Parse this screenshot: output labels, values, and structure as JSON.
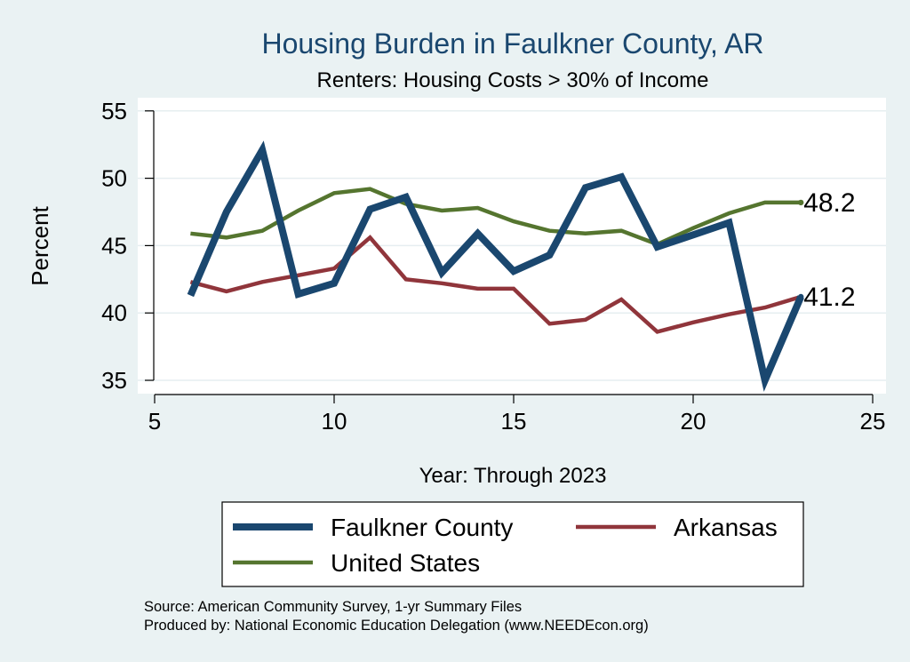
{
  "chart_data": {
    "type": "line",
    "title": "Housing Burden in Faulkner County, AR",
    "subtitle": "Renters: Housing Costs > 30% of Income",
    "xlabel": "Year: Through 2023",
    "ylabel": "Percent",
    "xlim": [
      5,
      25
    ],
    "ylim": [
      35,
      55
    ],
    "xticks": [
      5,
      10,
      15,
      20,
      25
    ],
    "yticks": [
      35,
      40,
      45,
      50,
      55
    ],
    "grid": "horizontal",
    "legend_position": "bottom",
    "series": [
      {
        "name": "Faulkner County",
        "color": "#1a476f",
        "x": [
          6,
          7,
          8,
          9,
          10,
          11,
          12,
          13,
          14,
          15,
          16,
          17,
          18,
          19,
          20,
          21,
          22,
          23
        ],
        "values": [
          41.3,
          47.5,
          52.1,
          41.4,
          42.2,
          47.7,
          48.6,
          43.0,
          45.9,
          43.1,
          44.3,
          49.3,
          50.1,
          44.9,
          45.8,
          46.7,
          35.0,
          41.2
        ]
      },
      {
        "name": "Arkansas",
        "color": "#90353b",
        "x": [
          6,
          7,
          8,
          9,
          10,
          11,
          12,
          13,
          14,
          15,
          16,
          17,
          18,
          19,
          20,
          21,
          22,
          23
        ],
        "values": [
          42.3,
          41.6,
          42.3,
          42.8,
          43.3,
          45.6,
          42.5,
          42.2,
          41.8,
          41.8,
          39.2,
          39.5,
          41.0,
          38.6,
          39.3,
          39.9,
          40.4,
          41.2
        ]
      },
      {
        "name": "United States",
        "color": "#55752f",
        "x": [
          6,
          7,
          8,
          9,
          10,
          11,
          12,
          13,
          14,
          15,
          16,
          17,
          18,
          19,
          20,
          21,
          22,
          23
        ],
        "values": [
          45.9,
          45.6,
          46.1,
          47.6,
          48.9,
          49.2,
          48.1,
          47.6,
          47.8,
          46.8,
          46.1,
          45.9,
          46.1,
          45.1,
          46.3,
          47.4,
          48.2,
          48.2
        ]
      }
    ],
    "end_labels": [
      {
        "series": "United States",
        "text": "48.2"
      },
      {
        "series": "Faulkner County",
        "text": "41.2"
      }
    ],
    "note_lines": [
      "Source: American Community Survey, 1-yr Summary Files",
      "Produced by: National Economic Education Delegation (www.NEEDEcon.org)"
    ]
  }
}
